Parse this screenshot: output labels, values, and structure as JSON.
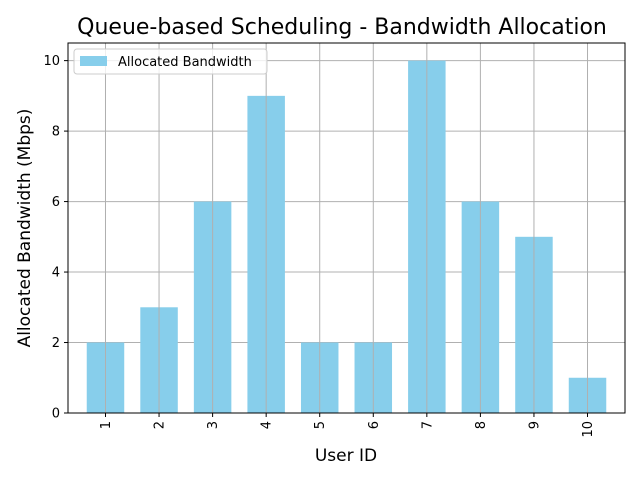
{
  "chart_data": {
    "type": "bar",
    "title": "Queue-based Scheduling - Bandwidth Allocation",
    "xlabel": "User ID",
    "ylabel": "Allocated Bandwidth (Mbps)",
    "categories": [
      "1",
      "2",
      "3",
      "4",
      "5",
      "6",
      "7",
      "8",
      "9",
      "10"
    ],
    "series": [
      {
        "name": "Allocated Bandwidth",
        "values": [
          2,
          3,
          6,
          9,
          2,
          2,
          10,
          6,
          5,
          1
        ],
        "color": "#87ceeb"
      }
    ],
    "ylim": [
      0,
      10.5
    ],
    "yticks": [
      0,
      2,
      4,
      6,
      8,
      10
    ],
    "grid": true,
    "legend": "top-left"
  }
}
